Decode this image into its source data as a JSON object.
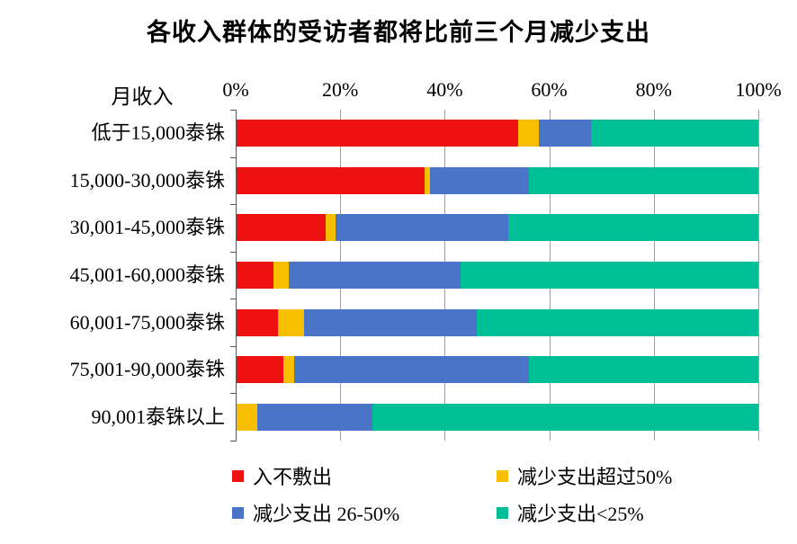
{
  "title": "各收入群体的受访者都将比前三个月减少支出",
  "axis": {
    "y_label": "月收入",
    "x_ticks": [
      "0%",
      "20%",
      "40%",
      "60%",
      "80%",
      "100%"
    ]
  },
  "colors": {
    "red": "#ee1111",
    "yellow": "#f8be00",
    "blue": "#4a74c8",
    "green": "#00be95",
    "gridline": "#9e9e9e",
    "axis": "#595959"
  },
  "legend": [
    {
      "label": "入不敷出",
      "color": "#ee1111"
    },
    {
      "label": "减少支出超过50%",
      "color": "#f8be00"
    },
    {
      "label": "减少支出 26-50%",
      "color": "#4a74c8"
    },
    {
      "label": "减少支出<25%",
      "color": "#00be95"
    }
  ],
  "chart_data": {
    "type": "bar",
    "orientation": "horizontal",
    "stacked": true,
    "title": "各收入群体的受访者都将比前三个月减少支出",
    "xlabel_ticks": [
      "0%",
      "20%",
      "40%",
      "60%",
      "80%",
      "100%"
    ],
    "ylabel": "月收入",
    "xlim": [
      0,
      100
    ],
    "grid": true,
    "legend_position": "bottom",
    "categories": [
      "低于15,000泰铢",
      "15,000-30,000泰铢",
      "30,001-45,000泰铢",
      "45,001-60,000泰铢",
      "60,001-75,000泰铢",
      "75,001-90,000泰铢",
      "90,001泰铢以上"
    ],
    "series": [
      {
        "name": "入不敷出",
        "color": "#ee1111",
        "values": [
          54,
          36,
          17,
          7,
          8,
          9,
          0
        ]
      },
      {
        "name": "减少支出超过50%",
        "color": "#f8be00",
        "values": [
          4,
          1,
          2,
          3,
          5,
          2,
          4
        ]
      },
      {
        "name": "减少支出 26-50%",
        "color": "#4a74c8",
        "values": [
          10,
          19,
          33,
          33,
          33,
          45,
          22
        ]
      },
      {
        "name": "减少支出<25%",
        "color": "#00be95",
        "values": [
          32,
          44,
          48,
          57,
          54,
          44,
          74
        ]
      }
    ]
  }
}
